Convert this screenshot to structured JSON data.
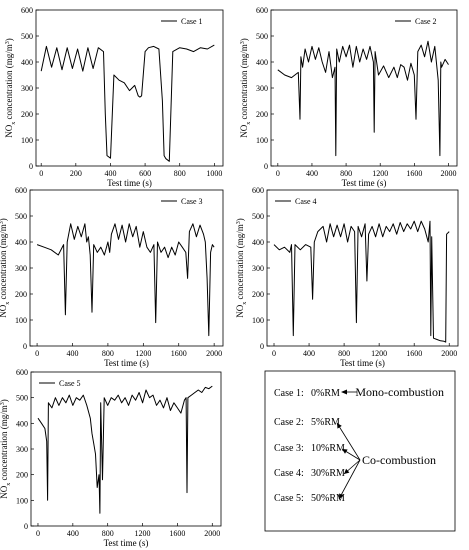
{
  "chart_data": [
    {
      "type": "line",
      "panel": "a",
      "series": [
        {
          "name": "Case 1",
          "x": [
            0,
            30,
            60,
            90,
            120,
            150,
            180,
            210,
            240,
            270,
            300,
            330,
            360,
            370,
            380,
            400,
            420,
            450,
            480,
            510,
            540,
            560,
            570,
            580,
            600,
            620,
            650,
            680,
            700,
            710,
            720,
            740,
            760,
            800,
            840,
            880,
            920,
            960,
            1000
          ],
          "y": [
            365,
            460,
            380,
            455,
            370,
            455,
            375,
            450,
            365,
            455,
            375,
            455,
            440,
            200,
            40,
            30,
            350,
            330,
            320,
            290,
            310,
            270,
            265,
            270,
            440,
            455,
            460,
            450,
            250,
            40,
            28,
            18,
            440,
            455,
            450,
            440,
            455,
            450,
            465
          ]
        }
      ],
      "title": "",
      "xlabel": "Test time (s)",
      "ylabel": "NOx concentration (mg/m3)",
      "xlim": [
        -30,
        1050
      ],
      "ylim": [
        0,
        600
      ],
      "xticks": [
        0,
        200,
        400,
        600,
        800,
        1000
      ],
      "yticks": [
        0,
        100,
        200,
        300,
        400,
        500,
        600
      ],
      "legend_position": "top-right"
    },
    {
      "type": "line",
      "panel": "b",
      "series": [
        {
          "name": "Case 2",
          "x": [
            0,
            80,
            160,
            240,
            260,
            270,
            290,
            320,
            360,
            400,
            440,
            480,
            520,
            560,
            600,
            640,
            670,
            680,
            690,
            720,
            760,
            800,
            840,
            880,
            920,
            960,
            1000,
            1040,
            1080,
            1120,
            1130,
            1140,
            1180,
            1240,
            1300,
            1360,
            1400,
            1440,
            1480,
            1520,
            1560,
            1600,
            1620,
            1640,
            1680,
            1720,
            1760,
            1800,
            1840,
            1880,
            1900,
            1910,
            1920,
            1960,
            2000
          ],
          "y": [
            370,
            350,
            340,
            360,
            180,
            420,
            380,
            450,
            400,
            460,
            410,
            455,
            400,
            360,
            440,
            340,
            380,
            40,
            450,
            400,
            460,
            420,
            465,
            380,
            460,
            400,
            450,
            410,
            460,
            400,
            130,
            440,
            350,
            385,
            340,
            380,
            340,
            390,
            380,
            330,
            395,
            350,
            180,
            440,
            465,
            420,
            480,
            400,
            460,
            330,
            40,
            400,
            380,
            410,
            390
          ]
        }
      ],
      "title": "",
      "xlabel": "Test time (s)",
      "ylabel": "NOx concentration (mg/m3)",
      "xlim": [
        -80,
        2100
      ],
      "ylim": [
        0,
        600
      ],
      "xticks": [
        0,
        400,
        800,
        1200,
        1600,
        2000
      ],
      "yticks": [
        0,
        100,
        200,
        300,
        400,
        500,
        600
      ],
      "legend_position": "top-right"
    },
    {
      "type": "line",
      "panel": "c",
      "series": [
        {
          "name": "Case 3",
          "x": [
            0,
            80,
            160,
            240,
            300,
            320,
            340,
            380,
            420,
            460,
            500,
            540,
            560,
            580,
            600,
            620,
            640,
            680,
            720,
            760,
            800,
            820,
            840,
            880,
            920,
            960,
            1000,
            1040,
            1080,
            1120,
            1160,
            1200,
            1240,
            1280,
            1320,
            1340,
            1360,
            1400,
            1440,
            1480,
            1520,
            1560,
            1600,
            1640,
            1680,
            1700,
            1720,
            1760,
            1800,
            1840,
            1880,
            1900,
            1920,
            1940,
            1960,
            1980,
            2000
          ],
          "y": [
            390,
            380,
            370,
            350,
            390,
            120,
            400,
            470,
            410,
            460,
            420,
            470,
            400,
            420,
            350,
            130,
            390,
            360,
            380,
            350,
            400,
            360,
            430,
            470,
            410,
            465,
            400,
            470,
            420,
            460,
            380,
            440,
            380,
            360,
            390,
            90,
            400,
            360,
            380,
            340,
            380,
            350,
            400,
            380,
            360,
            260,
            440,
            470,
            420,
            465,
            430,
            400,
            260,
            40,
            360,
            390,
            380
          ]
        }
      ],
      "title": "",
      "xlabel": "Test time (s)",
      "ylabel": "NOx concentration (mg/m3)",
      "xlim": [
        -80,
        2100
      ],
      "ylim": [
        0,
        600
      ],
      "xticks": [
        0,
        400,
        800,
        1200,
        1600,
        2000
      ],
      "yticks": [
        0,
        100,
        200,
        300,
        400,
        500,
        600
      ],
      "legend_position": "top-right"
    },
    {
      "type": "line",
      "panel": "d",
      "series": [
        {
          "name": "Case 4",
          "x": [
            0,
            60,
            120,
            180,
            200,
            220,
            240,
            300,
            360,
            420,
            440,
            460,
            500,
            560,
            600,
            640,
            680,
            720,
            760,
            800,
            840,
            880,
            920,
            940,
            960,
            1000,
            1040,
            1060,
            1080,
            1120,
            1160,
            1200,
            1240,
            1280,
            1320,
            1360,
            1400,
            1440,
            1480,
            1520,
            1560,
            1600,
            1640,
            1680,
            1720,
            1760,
            1780,
            1790,
            1800,
            1820,
            1860,
            1900,
            1940,
            1960,
            1970,
            2000
          ],
          "y": [
            390,
            370,
            380,
            360,
            390,
            40,
            390,
            370,
            390,
            380,
            180,
            400,
            440,
            460,
            400,
            470,
            420,
            465,
            420,
            470,
            400,
            460,
            440,
            90,
            460,
            420,
            470,
            250,
            430,
            460,
            420,
            470,
            420,
            460,
            440,
            470,
            430,
            475,
            440,
            470,
            450,
            480,
            440,
            480,
            450,
            400,
            480,
            40,
            420,
            30,
            25,
            20,
            18,
            15,
            430,
            440
          ]
        }
      ],
      "title": "",
      "xlabel": "Test time (s)",
      "ylabel": "NOx concentration (mg/m3)",
      "xlim": [
        -80,
        2100
      ],
      "ylim": [
        0,
        600
      ],
      "xticks": [
        0,
        400,
        800,
        1200,
        1600,
        2000
      ],
      "yticks": [
        0,
        100,
        200,
        300,
        400,
        500,
        600
      ],
      "legend_position": "top-left"
    },
    {
      "type": "line",
      "panel": "e",
      "series": [
        {
          "name": "Case 5",
          "x": [
            0,
            40,
            80,
            100,
            110,
            120,
            160,
            200,
            240,
            280,
            320,
            360,
            400,
            440,
            480,
            520,
            560,
            600,
            620,
            640,
            660,
            680,
            700,
            710,
            720,
            740,
            760,
            800,
            840,
            880,
            920,
            960,
            1000,
            1040,
            1080,
            1120,
            1160,
            1200,
            1240,
            1280,
            1320,
            1360,
            1400,
            1440,
            1480,
            1520,
            1560,
            1600,
            1640,
            1680,
            1700,
            1710,
            1720,
            1760,
            1800,
            1840,
            1880,
            1920,
            1960,
            2000
          ],
          "y": [
            420,
            400,
            380,
            330,
            100,
            480,
            460,
            500,
            470,
            500,
            480,
            510,
            470,
            500,
            490,
            510,
            470,
            420,
            360,
            320,
            280,
            150,
            200,
            50,
            480,
            180,
            500,
            470,
            500,
            490,
            510,
            480,
            500,
            470,
            510,
            490,
            520,
            480,
            530,
            500,
            510,
            470,
            490,
            460,
            500,
            450,
            480,
            460,
            440,
            490,
            500,
            130,
            500,
            510,
            520,
            530,
            520,
            540,
            535,
            545
          ]
        }
      ],
      "title": "",
      "xlabel": "Test time (s)",
      "ylabel": "NOx concentration (mg/m3)",
      "xlim": [
        -80,
        2100
      ],
      "ylim": [
        0,
        600
      ],
      "xticks": [
        0,
        400,
        800,
        1200,
        1600,
        2000
      ],
      "yticks": [
        0,
        100,
        200,
        300,
        400,
        500,
        600
      ],
      "legend_position": "top-left"
    }
  ],
  "legend_box": {
    "row1_case": "Case 1:",
    "row1_value": "0%RM",
    "mono_label": "Mono-combustion",
    "rows": [
      {
        "case": "Case 2:",
        "value": "5%RM"
      },
      {
        "case": "Case 3:",
        "value": "10%RM"
      },
      {
        "case": "Case 4:",
        "value": "30%RM"
      },
      {
        "case": "Case 5:",
        "value": "50%RM"
      }
    ],
    "co_label": "Co-combustion"
  },
  "colors": {
    "line": "#000000",
    "frame": "#000000"
  }
}
